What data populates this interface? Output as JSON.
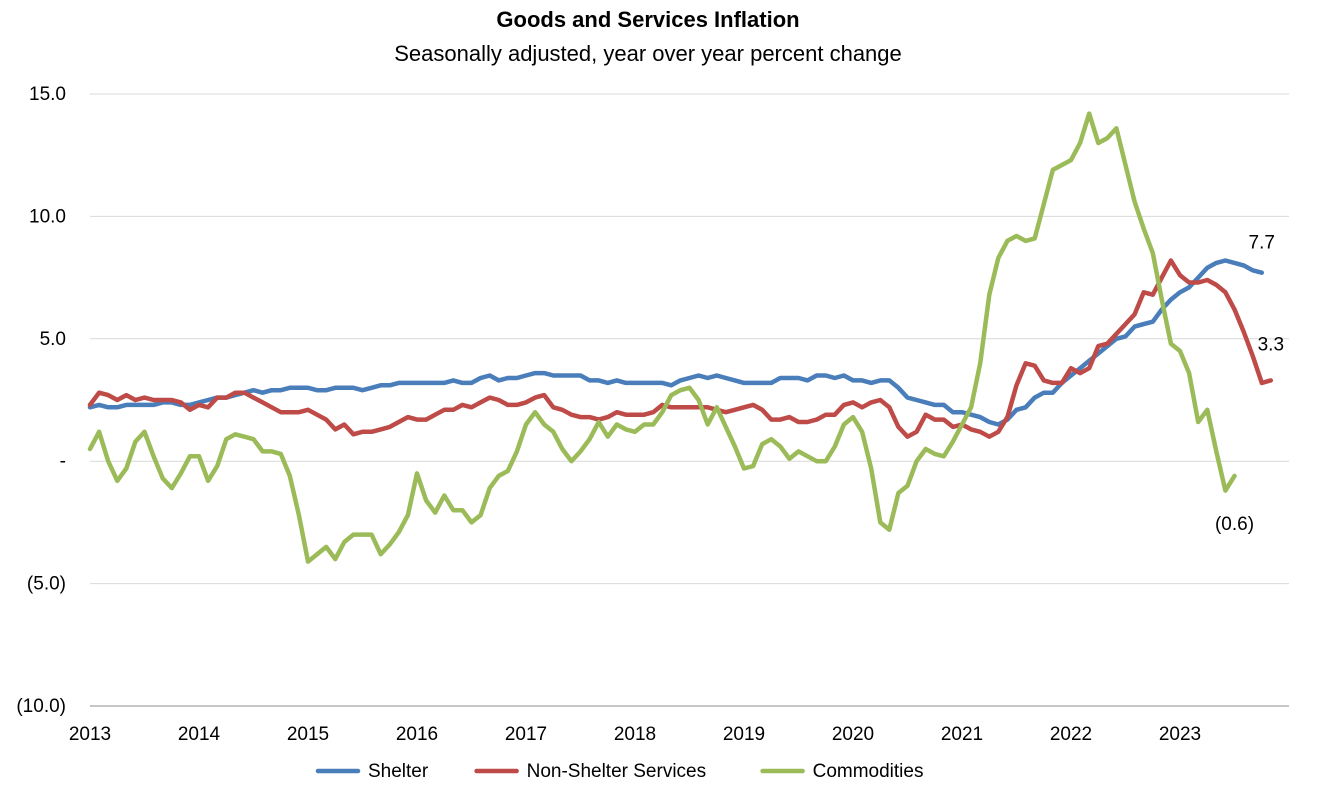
{
  "chart_data": {
    "type": "line",
    "title": "Goods and Services Inflation",
    "subtitle": "Seasonally adjusted, year over year percent change",
    "xlabel": "",
    "ylabel": "",
    "x_start": "2013-01",
    "x_end": "2023-07",
    "xlim": [
      "2013-01",
      "2024-01"
    ],
    "ylim": [
      -10,
      15
    ],
    "y_ticks": [
      {
        "value": 15,
        "label": "15.0"
      },
      {
        "value": 10,
        "label": "10.0"
      },
      {
        "value": 5,
        "label": "5.0"
      },
      {
        "value": 0,
        "label": "-"
      },
      {
        "value": -5,
        "label": "(5.0)"
      },
      {
        "value": -10,
        "label": "(10.0)"
      }
    ],
    "x_ticks": [
      {
        "value": "2013-01",
        "label": "2013"
      },
      {
        "value": "2014-01",
        "label": "2014"
      },
      {
        "value": "2015-01",
        "label": "2015"
      },
      {
        "value": "2016-01",
        "label": "2016"
      },
      {
        "value": "2017-01",
        "label": "2017"
      },
      {
        "value": "2018-01",
        "label": "2018"
      },
      {
        "value": "2019-01",
        "label": "2019"
      },
      {
        "value": "2020-01",
        "label": "2020"
      },
      {
        "value": "2021-01",
        "label": "2021"
      },
      {
        "value": "2022-01",
        "label": "2022"
      },
      {
        "value": "2023-01",
        "label": "2023"
      }
    ],
    "grid": true,
    "legend_position": "bottom",
    "series": [
      {
        "name": "Shelter",
        "color": "#4a7ebb",
        "end_label": "7.7",
        "values": [
          2.2,
          2.3,
          2.2,
          2.2,
          2.3,
          2.3,
          2.3,
          2.3,
          2.4,
          2.4,
          2.3,
          2.3,
          2.4,
          2.5,
          2.6,
          2.6,
          2.7,
          2.8,
          2.9,
          2.8,
          2.9,
          2.9,
          3.0,
          3.0,
          3.0,
          2.9,
          2.9,
          3.0,
          3.0,
          3.0,
          2.9,
          3.0,
          3.1,
          3.1,
          3.2,
          3.2,
          3.2,
          3.2,
          3.2,
          3.2,
          3.3,
          3.2,
          3.2,
          3.4,
          3.5,
          3.3,
          3.4,
          3.4,
          3.5,
          3.6,
          3.6,
          3.5,
          3.5,
          3.5,
          3.5,
          3.3,
          3.3,
          3.2,
          3.3,
          3.2,
          3.2,
          3.2,
          3.2,
          3.2,
          3.1,
          3.3,
          3.4,
          3.5,
          3.4,
          3.5,
          3.4,
          3.3,
          3.2,
          3.2,
          3.2,
          3.2,
          3.4,
          3.4,
          3.4,
          3.3,
          3.5,
          3.5,
          3.4,
          3.5,
          3.3,
          3.3,
          3.2,
          3.3,
          3.3,
          3.0,
          2.6,
          2.5,
          2.4,
          2.3,
          2.3,
          2.0,
          2.0,
          1.9,
          1.8,
          1.6,
          1.5,
          1.7,
          2.1,
          2.2,
          2.6,
          2.8,
          2.8,
          3.2,
          3.5,
          3.8,
          4.1,
          4.4,
          4.7,
          5.0,
          5.1,
          5.5,
          5.6,
          5.7,
          6.2,
          6.6,
          6.9,
          7.1,
          7.5,
          7.9,
          8.1,
          8.2,
          8.1,
          8.0,
          7.8,
          7.7
        ]
      },
      {
        "name": "Non-Shelter Services",
        "color": "#be4b48",
        "end_label": "3.3",
        "values": [
          2.3,
          2.8,
          2.7,
          2.5,
          2.7,
          2.5,
          2.6,
          2.5,
          2.5,
          2.5,
          2.4,
          2.1,
          2.3,
          2.2,
          2.6,
          2.6,
          2.8,
          2.8,
          2.6,
          2.4,
          2.2,
          2.0,
          2.0,
          2.0,
          2.1,
          1.9,
          1.7,
          1.3,
          1.5,
          1.1,
          1.2,
          1.2,
          1.3,
          1.4,
          1.6,
          1.8,
          1.7,
          1.7,
          1.9,
          2.1,
          2.1,
          2.3,
          2.2,
          2.4,
          2.6,
          2.5,
          2.3,
          2.3,
          2.4,
          2.6,
          2.7,
          2.2,
          2.1,
          1.9,
          1.8,
          1.8,
          1.7,
          1.8,
          2.0,
          1.9,
          1.9,
          1.9,
          2.0,
          2.3,
          2.2,
          2.2,
          2.2,
          2.2,
          2.2,
          2.1,
          2.0,
          2.1,
          2.2,
          2.3,
          2.1,
          1.7,
          1.7,
          1.8,
          1.6,
          1.6,
          1.7,
          1.9,
          1.9,
          2.3,
          2.4,
          2.2,
          2.4,
          2.5,
          2.2,
          1.4,
          1.0,
          1.2,
          1.9,
          1.7,
          1.7,
          1.4,
          1.5,
          1.3,
          1.2,
          1.0,
          1.2,
          1.8,
          3.1,
          4.0,
          3.9,
          3.3,
          3.2,
          3.2,
          3.8,
          3.6,
          3.8,
          4.7,
          4.8,
          5.2,
          5.6,
          6.0,
          6.9,
          6.8,
          7.5,
          8.2,
          7.6,
          7.3,
          7.3,
          7.4,
          7.2,
          6.9,
          6.2,
          5.3,
          4.3,
          3.2,
          3.3
        ]
      },
      {
        "name": "Commodities",
        "color": "#9bbb59",
        "end_label": "(0.6)",
        "values": [
          0.5,
          1.2,
          0.0,
          -0.8,
          -0.3,
          0.8,
          1.2,
          0.2,
          -0.7,
          -1.1,
          -0.5,
          0.2,
          0.2,
          -0.8,
          -0.2,
          0.9,
          1.1,
          1.0,
          0.9,
          0.4,
          0.4,
          0.3,
          -0.6,
          -2.2,
          -4.1,
          -3.8,
          -3.5,
          -4.0,
          -3.3,
          -3.0,
          -3.0,
          -3.0,
          -3.8,
          -3.4,
          -2.9,
          -2.2,
          -0.5,
          -1.6,
          -2.1,
          -1.4,
          -2.0,
          -2.0,
          -2.5,
          -2.2,
          -1.1,
          -0.6,
          -0.4,
          0.4,
          1.5,
          2.0,
          1.5,
          1.2,
          0.5,
          0.0,
          0.4,
          0.9,
          1.6,
          1.0,
          1.5,
          1.3,
          1.2,
          1.5,
          1.5,
          2.0,
          2.7,
          2.9,
          3.0,
          2.5,
          1.5,
          2.2,
          1.4,
          0.6,
          -0.3,
          -0.2,
          0.7,
          0.9,
          0.6,
          0.1,
          0.4,
          0.2,
          0.0,
          0.0,
          0.6,
          1.5,
          1.8,
          1.2,
          -0.3,
          -2.5,
          -2.8,
          -1.3,
          -1.0,
          0.0,
          0.5,
          0.3,
          0.2,
          0.8,
          1.5,
          2.2,
          4.0,
          6.8,
          8.3,
          9.0,
          9.2,
          9.0,
          9.1,
          10.5,
          11.9,
          12.1,
          12.3,
          13.0,
          14.2,
          13.0,
          13.2,
          13.6,
          12.1,
          10.6,
          9.5,
          8.5,
          6.6,
          4.8,
          4.5,
          3.6,
          1.6,
          2.1,
          0.4,
          -1.2,
          -0.6
        ]
      }
    ]
  }
}
